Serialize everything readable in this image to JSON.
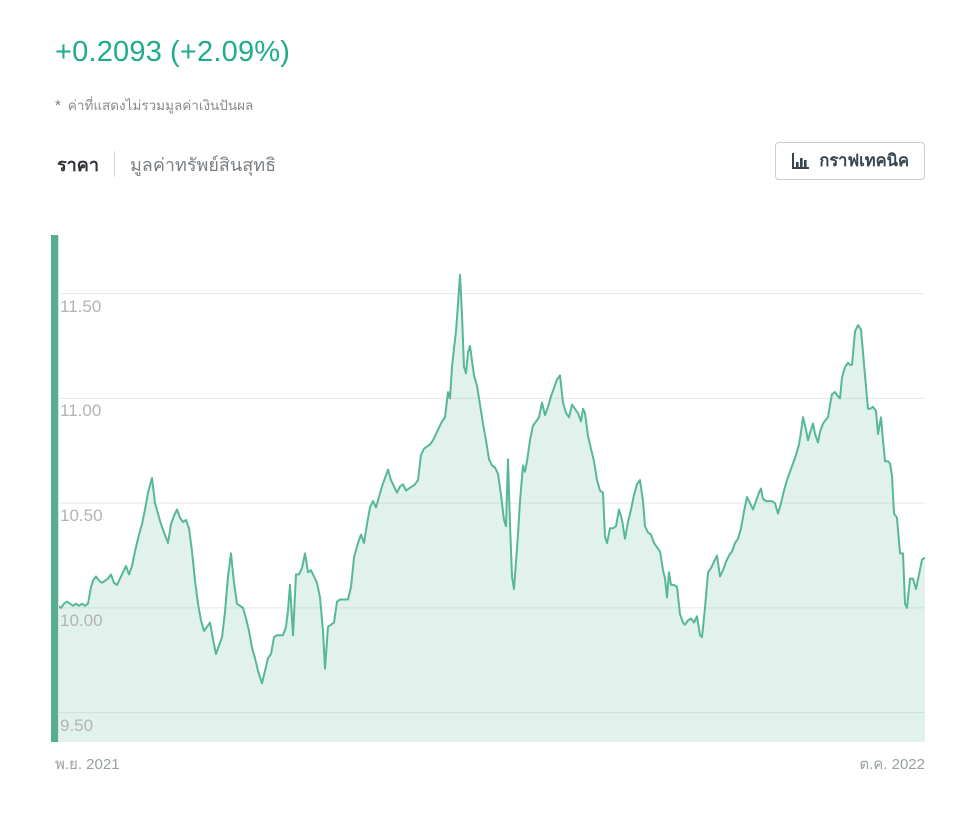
{
  "header": {
    "change_value": "+0.2093",
    "change_percent": "(+2.09%)",
    "footnote_symbol": "*",
    "footnote_text": "ค่าที่แสดงไม่รวมมูลค่าเงินปันผล"
  },
  "tabs": [
    {
      "label": "ราคา",
      "active": true
    },
    {
      "label": "มูลค่าทรัพย์สินสุทธิ",
      "active": false
    }
  ],
  "toolbar": {
    "technical_chart_button": "กราฟเทคนิค"
  },
  "colors": {
    "change_text": "#1fab8c",
    "line": "#57b894",
    "fill": "rgba(87,184,148,0.18)",
    "left_bar": "#57ad92",
    "gridline": "#e7e7e7",
    "y_label": "#b3b3b3",
    "x_label": "#9aa0a0"
  },
  "chart_data": {
    "type": "area",
    "title": "",
    "xlabel": "",
    "ylabel": "",
    "grid": true,
    "legend": false,
    "ylim": [
      9.36,
      11.78
    ],
    "y_ticks": [
      "11.50",
      "11.00",
      "10.50",
      "10.00",
      "9.50"
    ],
    "y_tick_values": [
      11.5,
      11.0,
      10.5,
      10.0,
      9.5
    ],
    "x_axis_labels": {
      "start": "พ.ย. 2021",
      "end": "ต.ค. 2022"
    },
    "series_name": "ราคา",
    "points": [
      [
        0,
        10.02
      ],
      [
        3,
        10.01
      ],
      [
        6,
        10.0
      ],
      [
        9,
        10.02
      ],
      [
        12,
        10.03
      ],
      [
        15,
        10.02
      ],
      [
        18,
        10.01
      ],
      [
        21,
        10.02
      ],
      [
        24,
        10.01
      ],
      [
        27,
        10.02
      ],
      [
        30,
        10.01
      ],
      [
        33,
        10.02
      ],
      [
        36,
        10.1
      ],
      [
        38,
        10.13
      ],
      [
        41,
        10.15
      ],
      [
        44,
        10.13
      ],
      [
        47,
        10.12
      ],
      [
        50,
        10.13
      ],
      [
        53,
        10.14
      ],
      [
        56,
        10.16
      ],
      [
        59,
        10.12
      ],
      [
        62,
        10.11
      ],
      [
        65,
        10.14
      ],
      [
        68,
        10.17
      ],
      [
        71,
        10.2
      ],
      [
        74,
        10.16
      ],
      [
        77,
        10.2
      ],
      [
        80,
        10.27
      ],
      [
        84,
        10.35
      ],
      [
        87,
        10.4
      ],
      [
        90,
        10.47
      ],
      [
        93,
        10.55
      ],
      [
        97,
        10.62
      ],
      [
        100,
        10.5
      ],
      [
        103,
        10.45
      ],
      [
        106,
        10.4
      ],
      [
        109,
        10.36
      ],
      [
        113,
        10.31
      ],
      [
        116,
        10.4
      ],
      [
        119,
        10.44
      ],
      [
        122,
        10.47
      ],
      [
        125,
        10.43
      ],
      [
        128,
        10.41
      ],
      [
        131,
        10.42
      ],
      [
        134,
        10.38
      ],
      [
        137,
        10.27
      ],
      [
        140,
        10.13
      ],
      [
        143,
        10.02
      ],
      [
        146,
        9.94
      ],
      [
        149,
        9.89
      ],
      [
        152,
        9.91
      ],
      [
        155,
        9.93
      ],
      [
        158,
        9.85
      ],
      [
        161,
        9.78
      ],
      [
        164,
        9.82
      ],
      [
        167,
        9.86
      ],
      [
        170,
        9.98
      ],
      [
        173,
        10.15
      ],
      [
        176,
        10.26
      ],
      [
        179,
        10.12
      ],
      [
        182,
        10.02
      ],
      [
        185,
        10.01
      ],
      [
        188,
        10.0
      ],
      [
        191,
        9.95
      ],
      [
        194,
        9.89
      ],
      [
        197,
        9.81
      ],
      [
        200,
        9.76
      ],
      [
        203,
        9.7
      ],
      [
        207,
        9.64
      ],
      [
        210,
        9.7
      ],
      [
        213,
        9.76
      ],
      [
        216,
        9.78
      ],
      [
        219,
        9.86
      ],
      [
        222,
        9.87
      ],
      [
        225,
        9.87
      ],
      [
        228,
        9.87
      ],
      [
        231,
        9.91
      ],
      [
        233,
        9.99
      ],
      [
        235,
        10.11
      ],
      [
        238,
        9.87
      ],
      [
        241,
        10.16
      ],
      [
        244,
        10.16
      ],
      [
        247,
        10.19
      ],
      [
        250,
        10.26
      ],
      [
        253,
        10.17
      ],
      [
        256,
        10.18
      ],
      [
        259,
        10.15
      ],
      [
        262,
        10.12
      ],
      [
        265,
        10.05
      ],
      [
        268,
        9.89
      ],
      [
        270,
        9.71
      ],
      [
        273,
        9.91
      ],
      [
        276,
        9.92
      ],
      [
        279,
        9.93
      ],
      [
        282,
        10.03
      ],
      [
        285,
        10.04
      ],
      [
        289,
        10.04
      ],
      [
        293,
        10.04
      ],
      [
        296,
        10.1
      ],
      [
        299,
        10.24
      ],
      [
        303,
        10.31
      ],
      [
        306,
        10.35
      ],
      [
        309,
        10.31
      ],
      [
        312,
        10.4
      ],
      [
        315,
        10.48
      ],
      [
        318,
        10.51
      ],
      [
        321,
        10.48
      ],
      [
        324,
        10.53
      ],
      [
        327,
        10.58
      ],
      [
        330,
        10.62
      ],
      [
        333,
        10.66
      ],
      [
        336,
        10.61
      ],
      [
        339,
        10.58
      ],
      [
        342,
        10.55
      ],
      [
        345,
        10.58
      ],
      [
        348,
        10.59
      ],
      [
        351,
        10.56
      ],
      [
        354,
        10.57
      ],
      [
        357,
        10.58
      ],
      [
        360,
        10.59
      ],
      [
        363,
        10.61
      ],
      [
        366,
        10.73
      ],
      [
        369,
        10.76
      ],
      [
        372,
        10.77
      ],
      [
        375,
        10.78
      ],
      [
        378,
        10.8
      ],
      [
        381,
        10.83
      ],
      [
        384,
        10.86
      ],
      [
        387,
        10.89
      ],
      [
        390,
        10.91
      ],
      [
        393,
        11.03
      ],
      [
        395,
        11.0
      ],
      [
        397,
        11.15
      ],
      [
        399,
        11.24
      ],
      [
        401,
        11.32
      ],
      [
        403,
        11.45
      ],
      [
        405,
        11.59
      ],
      [
        407,
        11.4
      ],
      [
        409,
        11.15
      ],
      [
        411,
        11.12
      ],
      [
        413,
        11.22
      ],
      [
        415,
        11.25
      ],
      [
        417,
        11.18
      ],
      [
        419,
        11.11
      ],
      [
        422,
        11.06
      ],
      [
        425,
        10.97
      ],
      [
        428,
        10.88
      ],
      [
        431,
        10.8
      ],
      [
        434,
        10.71
      ],
      [
        437,
        10.68
      ],
      [
        440,
        10.67
      ],
      [
        443,
        10.64
      ],
      [
        446,
        10.54
      ],
      [
        449,
        10.42
      ],
      [
        451,
        10.39
      ],
      [
        453,
        10.71
      ],
      [
        455,
        10.4
      ],
      [
        457,
        10.15
      ],
      [
        459,
        10.09
      ],
      [
        461,
        10.22
      ],
      [
        463,
        10.35
      ],
      [
        465,
        10.51
      ],
      [
        468,
        10.68
      ],
      [
        470,
        10.65
      ],
      [
        472,
        10.7
      ],
      [
        475,
        10.8
      ],
      [
        478,
        10.87
      ],
      [
        481,
        10.89
      ],
      [
        484,
        10.91
      ],
      [
        487,
        10.98
      ],
      [
        490,
        10.92
      ],
      [
        493,
        10.96
      ],
      [
        496,
        11.01
      ],
      [
        499,
        11.05
      ],
      [
        502,
        11.09
      ],
      [
        505,
        11.11
      ],
      [
        508,
        10.98
      ],
      [
        511,
        10.93
      ],
      [
        514,
        10.91
      ],
      [
        517,
        10.97
      ],
      [
        520,
        10.95
      ],
      [
        523,
        10.93
      ],
      [
        526,
        10.89
      ],
      [
        528,
        10.95
      ],
      [
        530,
        10.93
      ],
      [
        533,
        10.82
      ],
      [
        536,
        10.76
      ],
      [
        539,
        10.7
      ],
      [
        542,
        10.61
      ],
      [
        545,
        10.56
      ],
      [
        548,
        10.55
      ],
      [
        550,
        10.34
      ],
      [
        552,
        10.31
      ],
      [
        555,
        10.38
      ],
      [
        558,
        10.38
      ],
      [
        561,
        10.39
      ],
      [
        564,
        10.47
      ],
      [
        567,
        10.42
      ],
      [
        570,
        10.33
      ],
      [
        573,
        10.41
      ],
      [
        576,
        10.47
      ],
      [
        579,
        10.54
      ],
      [
        582,
        10.59
      ],
      [
        585,
        10.61
      ],
      [
        588,
        10.51
      ],
      [
        590,
        10.39
      ],
      [
        593,
        10.36
      ],
      [
        596,
        10.35
      ],
      [
        599,
        10.31
      ],
      [
        602,
        10.29
      ],
      [
        605,
        10.27
      ],
      [
        608,
        10.18
      ],
      [
        610,
        10.14
      ],
      [
        612,
        10.05
      ],
      [
        614,
        10.17
      ],
      [
        616,
        10.11
      ],
      [
        619,
        10.11
      ],
      [
        622,
        10.1
      ],
      [
        625,
        9.97
      ],
      [
        628,
        9.93
      ],
      [
        630,
        9.92
      ],
      [
        633,
        9.94
      ],
      [
        636,
        9.95
      ],
      [
        639,
        9.93
      ],
      [
        642,
        9.96
      ],
      [
        645,
        9.87
      ],
      [
        647,
        9.86
      ],
      [
        650,
        10.0
      ],
      [
        653,
        10.17
      ],
      [
        656,
        10.19
      ],
      [
        659,
        10.22
      ],
      [
        662,
        10.25
      ],
      [
        665,
        10.15
      ],
      [
        668,
        10.18
      ],
      [
        671,
        10.22
      ],
      [
        674,
        10.25
      ],
      [
        677,
        10.27
      ],
      [
        680,
        10.31
      ],
      [
        683,
        10.33
      ],
      [
        686,
        10.38
      ],
      [
        689,
        10.46
      ],
      [
        692,
        10.53
      ],
      [
        695,
        10.5
      ],
      [
        698,
        10.47
      ],
      [
        701,
        10.51
      ],
      [
        704,
        10.55
      ],
      [
        706,
        10.57
      ],
      [
        708,
        10.52
      ],
      [
        711,
        10.51
      ],
      [
        714,
        10.51
      ],
      [
        717,
        10.51
      ],
      [
        720,
        10.5
      ],
      [
        723,
        10.45
      ],
      [
        726,
        10.5
      ],
      [
        729,
        10.56
      ],
      [
        732,
        10.61
      ],
      [
        735,
        10.65
      ],
      [
        738,
        10.69
      ],
      [
        741,
        10.73
      ],
      [
        744,
        10.78
      ],
      [
        746,
        10.84
      ],
      [
        748,
        10.91
      ],
      [
        751,
        10.85
      ],
      [
        753,
        10.8
      ],
      [
        756,
        10.85
      ],
      [
        758,
        10.88
      ],
      [
        760,
        10.83
      ],
      [
        763,
        10.79
      ],
      [
        765,
        10.84
      ],
      [
        768,
        10.88
      ],
      [
        771,
        10.9
      ],
      [
        773,
        10.91
      ],
      [
        775,
        10.97
      ],
      [
        777,
        11.02
      ],
      [
        780,
        11.03
      ],
      [
        783,
        11.01
      ],
      [
        785,
        11.0
      ],
      [
        787,
        11.1
      ],
      [
        790,
        11.15
      ],
      [
        793,
        11.17
      ],
      [
        795,
        11.16
      ],
      [
        797,
        11.16
      ],
      [
        800,
        11.32
      ],
      [
        803,
        11.35
      ],
      [
        806,
        11.33
      ],
      [
        808,
        11.22
      ],
      [
        810,
        11.11
      ],
      [
        813,
        10.95
      ],
      [
        815,
        10.95
      ],
      [
        818,
        10.96
      ],
      [
        821,
        10.94
      ],
      [
        823,
        10.83
      ],
      [
        826,
        10.91
      ],
      [
        828,
        10.8
      ],
      [
        830,
        10.7
      ],
      [
        833,
        10.7
      ],
      [
        835,
        10.69
      ],
      [
        837,
        10.63
      ],
      [
        839,
        10.45
      ],
      [
        842,
        10.43
      ],
      [
        845,
        10.26
      ],
      [
        848,
        10.26
      ],
      [
        850,
        10.02
      ],
      [
        852,
        10.0
      ],
      [
        855,
        10.14
      ],
      [
        858,
        10.14
      ],
      [
        861,
        10.09
      ],
      [
        864,
        10.16
      ],
      [
        867,
        10.23
      ],
      [
        870,
        10.24
      ]
    ]
  }
}
